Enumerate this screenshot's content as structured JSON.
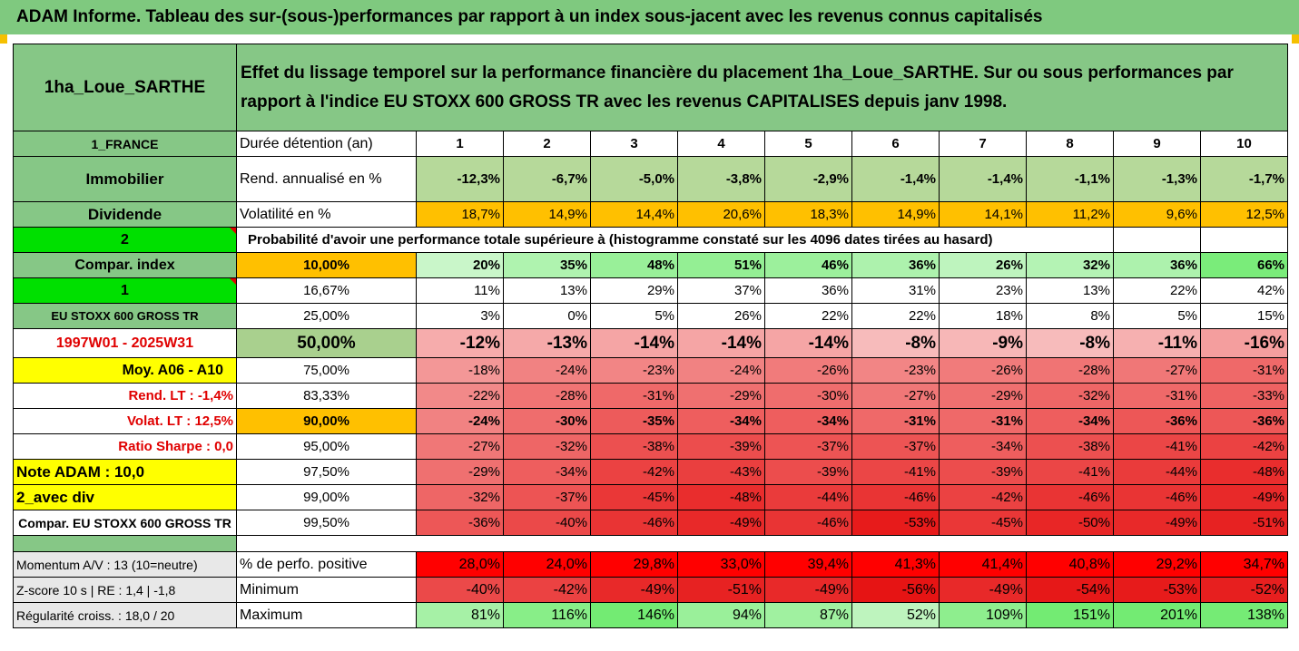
{
  "title": "ADAM Informe. Tableau des sur-(sous-)performances par rapport à un index sous-jacent avec les revenus connus capitalisés",
  "header": {
    "name": "1ha_Loue_SARTHE",
    "description": "Effet du lissage temporel sur la performance financière du placement 1ha_Loue_SARTHE. Sur ou sous performances par rapport à l'indice EU STOXX 600 GROSS TR avec les revenus CAPITALISES depuis janv 1998."
  },
  "left_labels": {
    "country": "1_FRANCE",
    "category": "Immobilier",
    "dividend": "Dividende",
    "n2": "2",
    "compar_index": "Compar. index",
    "n1": "1",
    "index_name": "EU STOXX 600 GROSS TR",
    "period": "1997W01 - 2025W31",
    "moy": "Moy. A06 - A10",
    "rend_lt": "Rend. LT :   -1,4%",
    "volat_lt": "Volat. LT :   12,5%",
    "sharpe": "Ratio Sharpe :    0,0",
    "note": "Note ADAM : 10,0",
    "avec_div": "2_avec div",
    "compar_full": "Compar. EU STOXX 600 GROSS TR",
    "momentum": "Momentum A/V : 13 (10=neutre)",
    "zscore": "Z-score 10 s  |  RE : 1,4  |  -1,8",
    "regularite": "Régularité croiss. : 18,0 / 20"
  },
  "rows_head": {
    "duree": "Durée détention (an)",
    "years": [
      "1",
      "2",
      "3",
      "4",
      "5",
      "6",
      "7",
      "8",
      "9",
      "10"
    ],
    "rend_label": "Rend. annualisé en %",
    "rend": [
      "-12,3%",
      "-6,7%",
      "-5,0%",
      "-3,8%",
      "-2,9%",
      "-1,4%",
      "-1,4%",
      "-1,1%",
      "-1,3%",
      "-1,7%"
    ],
    "vol_label": "Volatilité en %",
    "vol": [
      "18,7%",
      "14,9%",
      "14,4%",
      "20,6%",
      "18,3%",
      "14,9%",
      "14,1%",
      "11,2%",
      "9,6%",
      "12,5%"
    ],
    "proba_label": "Probabilité d'avoir une performance totale supérieure à (histogramme constaté sur les 4096 dates tirées au hasard)"
  },
  "proba_rows": [
    {
      "pct": "10,00%",
      "values": [
        "20%",
        "35%",
        "48%",
        "51%",
        "46%",
        "36%",
        "26%",
        "32%",
        "36%",
        "66%"
      ]
    },
    {
      "pct": "16,67%",
      "values": [
        "11%",
        "13%",
        "29%",
        "37%",
        "36%",
        "31%",
        "23%",
        "13%",
        "22%",
        "42%"
      ]
    },
    {
      "pct": "25,00%",
      "values": [
        "3%",
        "0%",
        "5%",
        "26%",
        "22%",
        "22%",
        "18%",
        "8%",
        "5%",
        "15%"
      ]
    },
    {
      "pct": "50,00%",
      "values": [
        "-12%",
        "-13%",
        "-14%",
        "-14%",
        "-14%",
        "-8%",
        "-9%",
        "-8%",
        "-11%",
        "-16%"
      ]
    },
    {
      "pct": "75,00%",
      "values": [
        "-18%",
        "-24%",
        "-23%",
        "-24%",
        "-26%",
        "-23%",
        "-26%",
        "-28%",
        "-27%",
        "-31%"
      ]
    },
    {
      "pct": "83,33%",
      "values": [
        "-22%",
        "-28%",
        "-31%",
        "-29%",
        "-30%",
        "-27%",
        "-29%",
        "-32%",
        "-31%",
        "-33%"
      ]
    },
    {
      "pct": "90,00%",
      "values": [
        "-24%",
        "-30%",
        "-35%",
        "-34%",
        "-34%",
        "-31%",
        "-31%",
        "-34%",
        "-36%",
        "-36%"
      ]
    },
    {
      "pct": "95,00%",
      "values": [
        "-27%",
        "-32%",
        "-38%",
        "-39%",
        "-37%",
        "-37%",
        "-34%",
        "-38%",
        "-41%",
        "-42%"
      ]
    },
    {
      "pct": "97,50%",
      "values": [
        "-29%",
        "-34%",
        "-42%",
        "-43%",
        "-39%",
        "-41%",
        "-39%",
        "-41%",
        "-44%",
        "-48%"
      ]
    },
    {
      "pct": "99,00%",
      "values": [
        "-32%",
        "-37%",
        "-45%",
        "-48%",
        "-44%",
        "-46%",
        "-42%",
        "-46%",
        "-46%",
        "-49%"
      ]
    },
    {
      "pct": "99,50%",
      "values": [
        "-36%",
        "-40%",
        "-46%",
        "-49%",
        "-46%",
        "-53%",
        "-45%",
        "-50%",
        "-49%",
        "-51%"
      ]
    }
  ],
  "bottom_rows": [
    {
      "label": "% de perfo. positive",
      "values": [
        "28,0%",
        "24,0%",
        "29,8%",
        "33,0%",
        "39,4%",
        "41,3%",
        "41,4%",
        "40,8%",
        "29,2%",
        "34,7%"
      ]
    },
    {
      "label": "Minimum",
      "values": [
        "-40%",
        "-42%",
        "-49%",
        "-51%",
        "-49%",
        "-56%",
        "-49%",
        "-54%",
        "-53%",
        "-52%"
      ]
    },
    {
      "label": "Maximum",
      "values": [
        "81%",
        "116%",
        "146%",
        "94%",
        "87%",
        "52%",
        "109%",
        "151%",
        "201%",
        "138%"
      ]
    }
  ],
  "colors": {
    "title_green": "#7fc97f",
    "bright_green": "#00e000",
    "yellow": "#ffff00",
    "orange": "#ffc000",
    "red_text": "#e00000"
  }
}
